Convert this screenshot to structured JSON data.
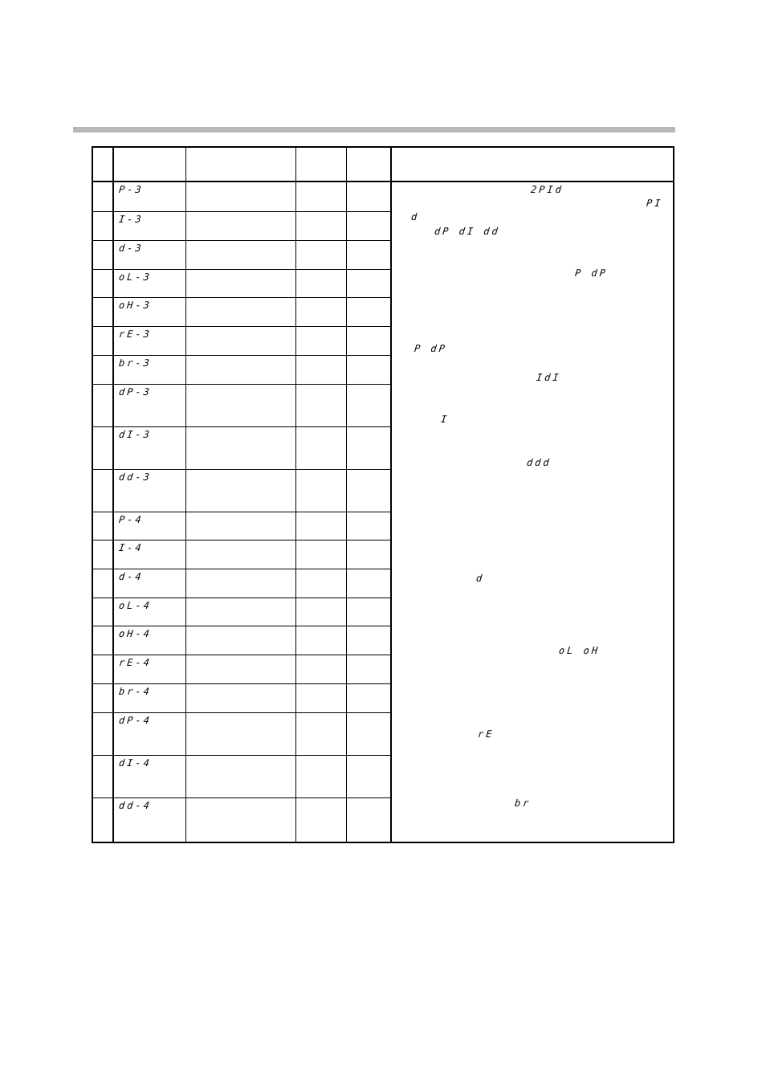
{
  "table": {
    "codes": [
      "P-3",
      "I-3",
      "d-3",
      "oL-3",
      "oH-3",
      "rE-3",
      "br-3",
      "dP-3",
      "dI-3",
      "dd-3",
      "P-4",
      "I-4",
      "d-4",
      "oL-4",
      "oH-4",
      "rE-4",
      "br-4",
      "dP-4",
      "dI-4",
      "dd-4"
    ],
    "description_codes": [
      "2PId",
      "PI",
      "d",
      "dP dI dd",
      "P dP",
      "P dP",
      "IdI",
      "I",
      "ddd",
      "d",
      "oL oH",
      "rE",
      "br"
    ]
  }
}
